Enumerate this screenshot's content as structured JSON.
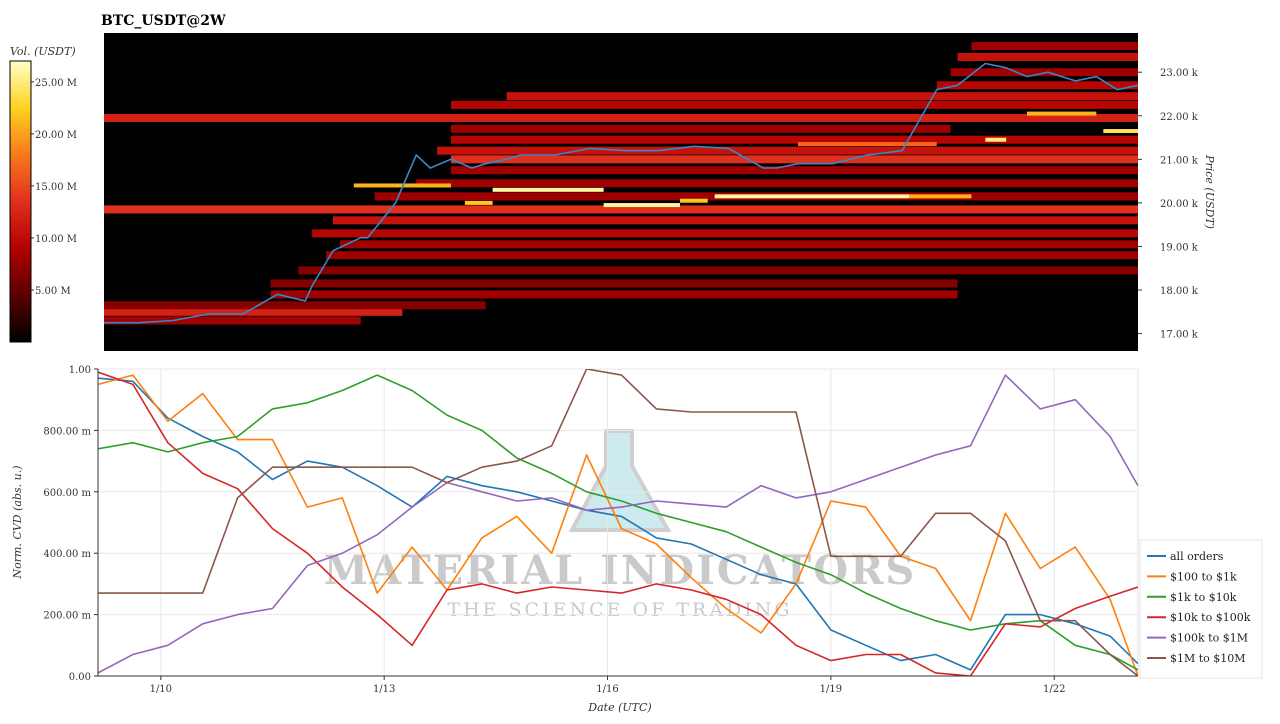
{
  "title": "BTC_USDT@2W",
  "colorbar": {
    "label": "Vol. (USDT)",
    "ticks": [
      {
        "value": 5,
        "label": "5.00 M"
      },
      {
        "value": 10,
        "label": "10.00 M"
      },
      {
        "value": 15,
        "label": "15.00 M"
      },
      {
        "value": 20,
        "label": "20.00 M"
      },
      {
        "value": 25,
        "label": "25.00 M"
      }
    ],
    "range": [
      0,
      27
    ],
    "colors": [
      "#000000",
      "#5a0000",
      "#b30000",
      "#e0301e",
      "#f7791a",
      "#ffd21f",
      "#ffffc8"
    ]
  },
  "watermark": {
    "name": "MATERIAL INDICATORS",
    "tagline": "THE SCIENCE OF TRADING"
  },
  "chart_data": [
    {
      "type": "heatmap",
      "title": "BTC_USDT@2W",
      "ylabel": "Price (USDT)",
      "ylim": [
        16600,
        23900
      ],
      "xlim": [
        0,
        14.9
      ],
      "yticks": [
        {
          "value": 17000,
          "label": "17.00 k"
        },
        {
          "value": 18000,
          "label": "18.00 k"
        },
        {
          "value": 19000,
          "label": "19.00 k"
        },
        {
          "value": 20000,
          "label": "20.00 k"
        },
        {
          "value": 21000,
          "label": "21.00 k"
        },
        {
          "value": 22000,
          "label": "22.00 k"
        },
        {
          "value": 23000,
          "label": "23.00 k"
        }
      ],
      "price_line": {
        "color": "#3a86c8",
        "x": [
          0.0,
          0.5,
          1.0,
          1.5,
          2.0,
          2.5,
          2.9,
          3.0,
          3.3,
          3.7,
          3.8,
          4.2,
          4.5,
          4.7,
          5.0,
          5.3,
          5.5,
          5.8,
          6.0,
          6.5,
          7.0,
          7.5,
          8.0,
          8.5,
          9.0,
          9.5,
          9.7,
          10.0,
          10.5,
          11.0,
          11.5,
          12.0,
          12.3,
          12.7,
          13.0,
          13.3,
          13.6,
          14.0,
          14.3,
          14.6,
          14.9
        ],
        "y": [
          17250,
          17250,
          17300,
          17450,
          17450,
          17900,
          17750,
          18100,
          18900,
          19200,
          19200,
          20000,
          21100,
          20800,
          21000,
          20800,
          20900,
          21000,
          21100,
          21100,
          21250,
          21200,
          21200,
          21300,
          21250,
          20800,
          20800,
          20900,
          20900,
          21100,
          21200,
          22600,
          22700,
          23200,
          23100,
          22900,
          23000,
          22800,
          22900,
          22600,
          22700
        ]
      },
      "bands": [
        {
          "price": 17300,
          "x0": 0.0,
          "x1": 3.7,
          "intensity": 0.3
        },
        {
          "price": 17500,
          "x0": 0.0,
          "x1": 4.3,
          "intensity": 0.45
        },
        {
          "price": 17650,
          "x0": 0.0,
          "x1": 5.5,
          "intensity": 0.25
        },
        {
          "price": 17900,
          "x0": 2.4,
          "x1": 12.3,
          "intensity": 0.3
        },
        {
          "price": 18150,
          "x0": 2.4,
          "x1": 12.3,
          "intensity": 0.25
        },
        {
          "price": 18450,
          "x0": 2.8,
          "x1": 14.9,
          "intensity": 0.25
        },
        {
          "price": 18800,
          "x0": 3.2,
          "x1": 14.9,
          "intensity": 0.3
        },
        {
          "price": 19050,
          "x0": 3.4,
          "x1": 14.9,
          "intensity": 0.3
        },
        {
          "price": 19300,
          "x0": 3.0,
          "x1": 14.9,
          "intensity": 0.35
        },
        {
          "price": 19600,
          "x0": 3.3,
          "x1": 14.9,
          "intensity": 0.4
        },
        {
          "price": 19850,
          "x0": 0.0,
          "x1": 14.9,
          "intensity": 0.5
        },
        {
          "price": 20150,
          "x0": 3.9,
          "x1": 14.9,
          "intensity": 0.3
        },
        {
          "price": 20450,
          "x0": 4.5,
          "x1": 14.9,
          "intensity": 0.3
        },
        {
          "price": 20750,
          "x0": 5.0,
          "x1": 14.9,
          "intensity": 0.3
        },
        {
          "price": 21000,
          "x0": 5.0,
          "x1": 14.9,
          "intensity": 0.5
        },
        {
          "price": 21200,
          "x0": 4.8,
          "x1": 14.9,
          "intensity": 0.4
        },
        {
          "price": 21450,
          "x0": 5.0,
          "x1": 14.9,
          "intensity": 0.35
        },
        {
          "price": 21700,
          "x0": 5.0,
          "x1": 12.2,
          "intensity": 0.3
        },
        {
          "price": 21950,
          "x0": 0.0,
          "x1": 14.9,
          "intensity": 0.45
        },
        {
          "price": 22250,
          "x0": 5.0,
          "x1": 14.9,
          "intensity": 0.35
        },
        {
          "price": 22450,
          "x0": 5.8,
          "x1": 14.9,
          "intensity": 0.4
        },
        {
          "price": 22700,
          "x0": 12.0,
          "x1": 14.9,
          "intensity": 0.35
        },
        {
          "price": 23000,
          "x0": 12.2,
          "x1": 14.9,
          "intensity": 0.3
        },
        {
          "price": 23350,
          "x0": 12.3,
          "x1": 14.9,
          "intensity": 0.4
        },
        {
          "price": 23600,
          "x0": 12.5,
          "x1": 14.9,
          "intensity": 0.3
        }
      ],
      "walls": [
        {
          "price": 20400,
          "x0": 3.6,
          "x1": 5.0,
          "volume": 21
        },
        {
          "price": 20000,
          "x0": 5.2,
          "x1": 5.6,
          "volume": 22
        },
        {
          "price": 20300,
          "x0": 5.6,
          "x1": 7.2,
          "volume": 26
        },
        {
          "price": 19950,
          "x0": 7.2,
          "x1": 8.3,
          "volume": 26
        },
        {
          "price": 20050,
          "x0": 8.3,
          "x1": 8.7,
          "volume": 22
        },
        {
          "price": 20150,
          "x0": 8.8,
          "x1": 11.6,
          "volume": 26
        },
        {
          "price": 20150,
          "x0": 11.6,
          "x1": 12.5,
          "volume": 21
        },
        {
          "price": 21350,
          "x0": 10.0,
          "x1": 12.0,
          "volume": 17
        },
        {
          "price": 21450,
          "x0": 12.7,
          "x1": 13.0,
          "volume": 25
        },
        {
          "price": 22050,
          "x0": 13.3,
          "x1": 14.3,
          "volume": 21
        },
        {
          "price": 21650,
          "x0": 14.4,
          "x1": 14.9,
          "volume": 24
        }
      ]
    },
    {
      "type": "line",
      "xlabel": "Date (UTC)",
      "ylabel": "Norm. CVD (abs. u.)",
      "xlim": [
        0,
        14.9
      ],
      "ylim": [
        0,
        1
      ],
      "xticks": [
        {
          "value": 0.9,
          "label": "1/10"
        },
        {
          "value": 4.1,
          "label": "1/13"
        },
        {
          "value": 7.3,
          "label": "1/16"
        },
        {
          "value": 10.5,
          "label": "1/19"
        },
        {
          "value": 13.7,
          "label": "1/22"
        }
      ],
      "yticks": [
        {
          "value": 0,
          "label": "0.00"
        },
        {
          "value": 0.2,
          "label": "200.00 m"
        },
        {
          "value": 0.4,
          "label": "400.00 m"
        },
        {
          "value": 0.6,
          "label": "600.00 m"
        },
        {
          "value": 0.8,
          "label": "800.00 m"
        },
        {
          "value": 1.0,
          "label": "1.00"
        }
      ],
      "legend_position": "right",
      "x": [
        0.0,
        0.5,
        1.0,
        1.5,
        2.0,
        2.5,
        3.0,
        3.5,
        4.0,
        4.5,
        5.0,
        5.5,
        6.0,
        6.5,
        7.0,
        7.5,
        8.0,
        8.5,
        9.0,
        9.5,
        10.0,
        10.5,
        11.0,
        11.5,
        12.0,
        12.5,
        13.0,
        13.5,
        14.0,
        14.5,
        14.9
      ],
      "series": [
        {
          "name": "all orders",
          "color": "#1f77b4",
          "values": [
            0.97,
            0.96,
            0.84,
            0.78,
            0.73,
            0.64,
            0.7,
            0.68,
            0.62,
            0.55,
            0.65,
            0.62,
            0.6,
            0.57,
            0.54,
            0.52,
            0.45,
            0.43,
            0.38,
            0.33,
            0.3,
            0.15,
            0.1,
            0.05,
            0.07,
            0.02,
            0.2,
            0.2,
            0.17,
            0.13,
            0.04
          ]
        },
        {
          "name": "$100 to $1k",
          "color": "#ff7f0e",
          "values": [
            0.95,
            0.98,
            0.83,
            0.92,
            0.77,
            0.77,
            0.55,
            0.58,
            0.27,
            0.42,
            0.28,
            0.45,
            0.52,
            0.4,
            0.72,
            0.48,
            0.43,
            0.32,
            0.22,
            0.14,
            0.3,
            0.57,
            0.55,
            0.39,
            0.35,
            0.18,
            0.53,
            0.35,
            0.42,
            0.25,
            0.0
          ]
        },
        {
          "name": "$1k to $10k",
          "color": "#2ca02c",
          "values": [
            0.74,
            0.76,
            0.73,
            0.76,
            0.78,
            0.87,
            0.89,
            0.93,
            0.98,
            0.93,
            0.85,
            0.8,
            0.71,
            0.66,
            0.6,
            0.57,
            0.53,
            0.5,
            0.47,
            0.42,
            0.37,
            0.33,
            0.27,
            0.22,
            0.18,
            0.15,
            0.17,
            0.18,
            0.1,
            0.07,
            0.02
          ]
        },
        {
          "name": "$10k to $100k",
          "color": "#d62728",
          "values": [
            0.99,
            0.95,
            0.76,
            0.66,
            0.61,
            0.48,
            0.4,
            0.29,
            0.2,
            0.1,
            0.28,
            0.3,
            0.27,
            0.29,
            0.28,
            0.27,
            0.3,
            0.28,
            0.25,
            0.2,
            0.1,
            0.05,
            0.07,
            0.07,
            0.01,
            0.0,
            0.17,
            0.16,
            0.22,
            0.26,
            0.29
          ]
        },
        {
          "name": "$100k to $1M",
          "color": "#9467bd",
          "values": [
            0.01,
            0.07,
            0.1,
            0.17,
            0.2,
            0.22,
            0.36,
            0.4,
            0.46,
            0.55,
            0.63,
            0.6,
            0.57,
            0.58,
            0.54,
            0.55,
            0.57,
            0.56,
            0.55,
            0.62,
            0.58,
            0.6,
            0.64,
            0.68,
            0.72,
            0.75,
            0.98,
            0.87,
            0.9,
            0.78,
            0.62
          ]
        },
        {
          "name": "$1M to $10M",
          "color": "#8c564b",
          "values": [
            0.27,
            0.27,
            0.27,
            0.27,
            0.58,
            0.68,
            0.68,
            0.68,
            0.68,
            0.68,
            0.63,
            0.68,
            0.7,
            0.75,
            1.0,
            0.98,
            0.87,
            0.86,
            0.86,
            0.86,
            0.86,
            0.39,
            0.39,
            0.39,
            0.53,
            0.53,
            0.44,
            0.18,
            0.18,
            0.07,
            0.0
          ]
        }
      ]
    }
  ]
}
